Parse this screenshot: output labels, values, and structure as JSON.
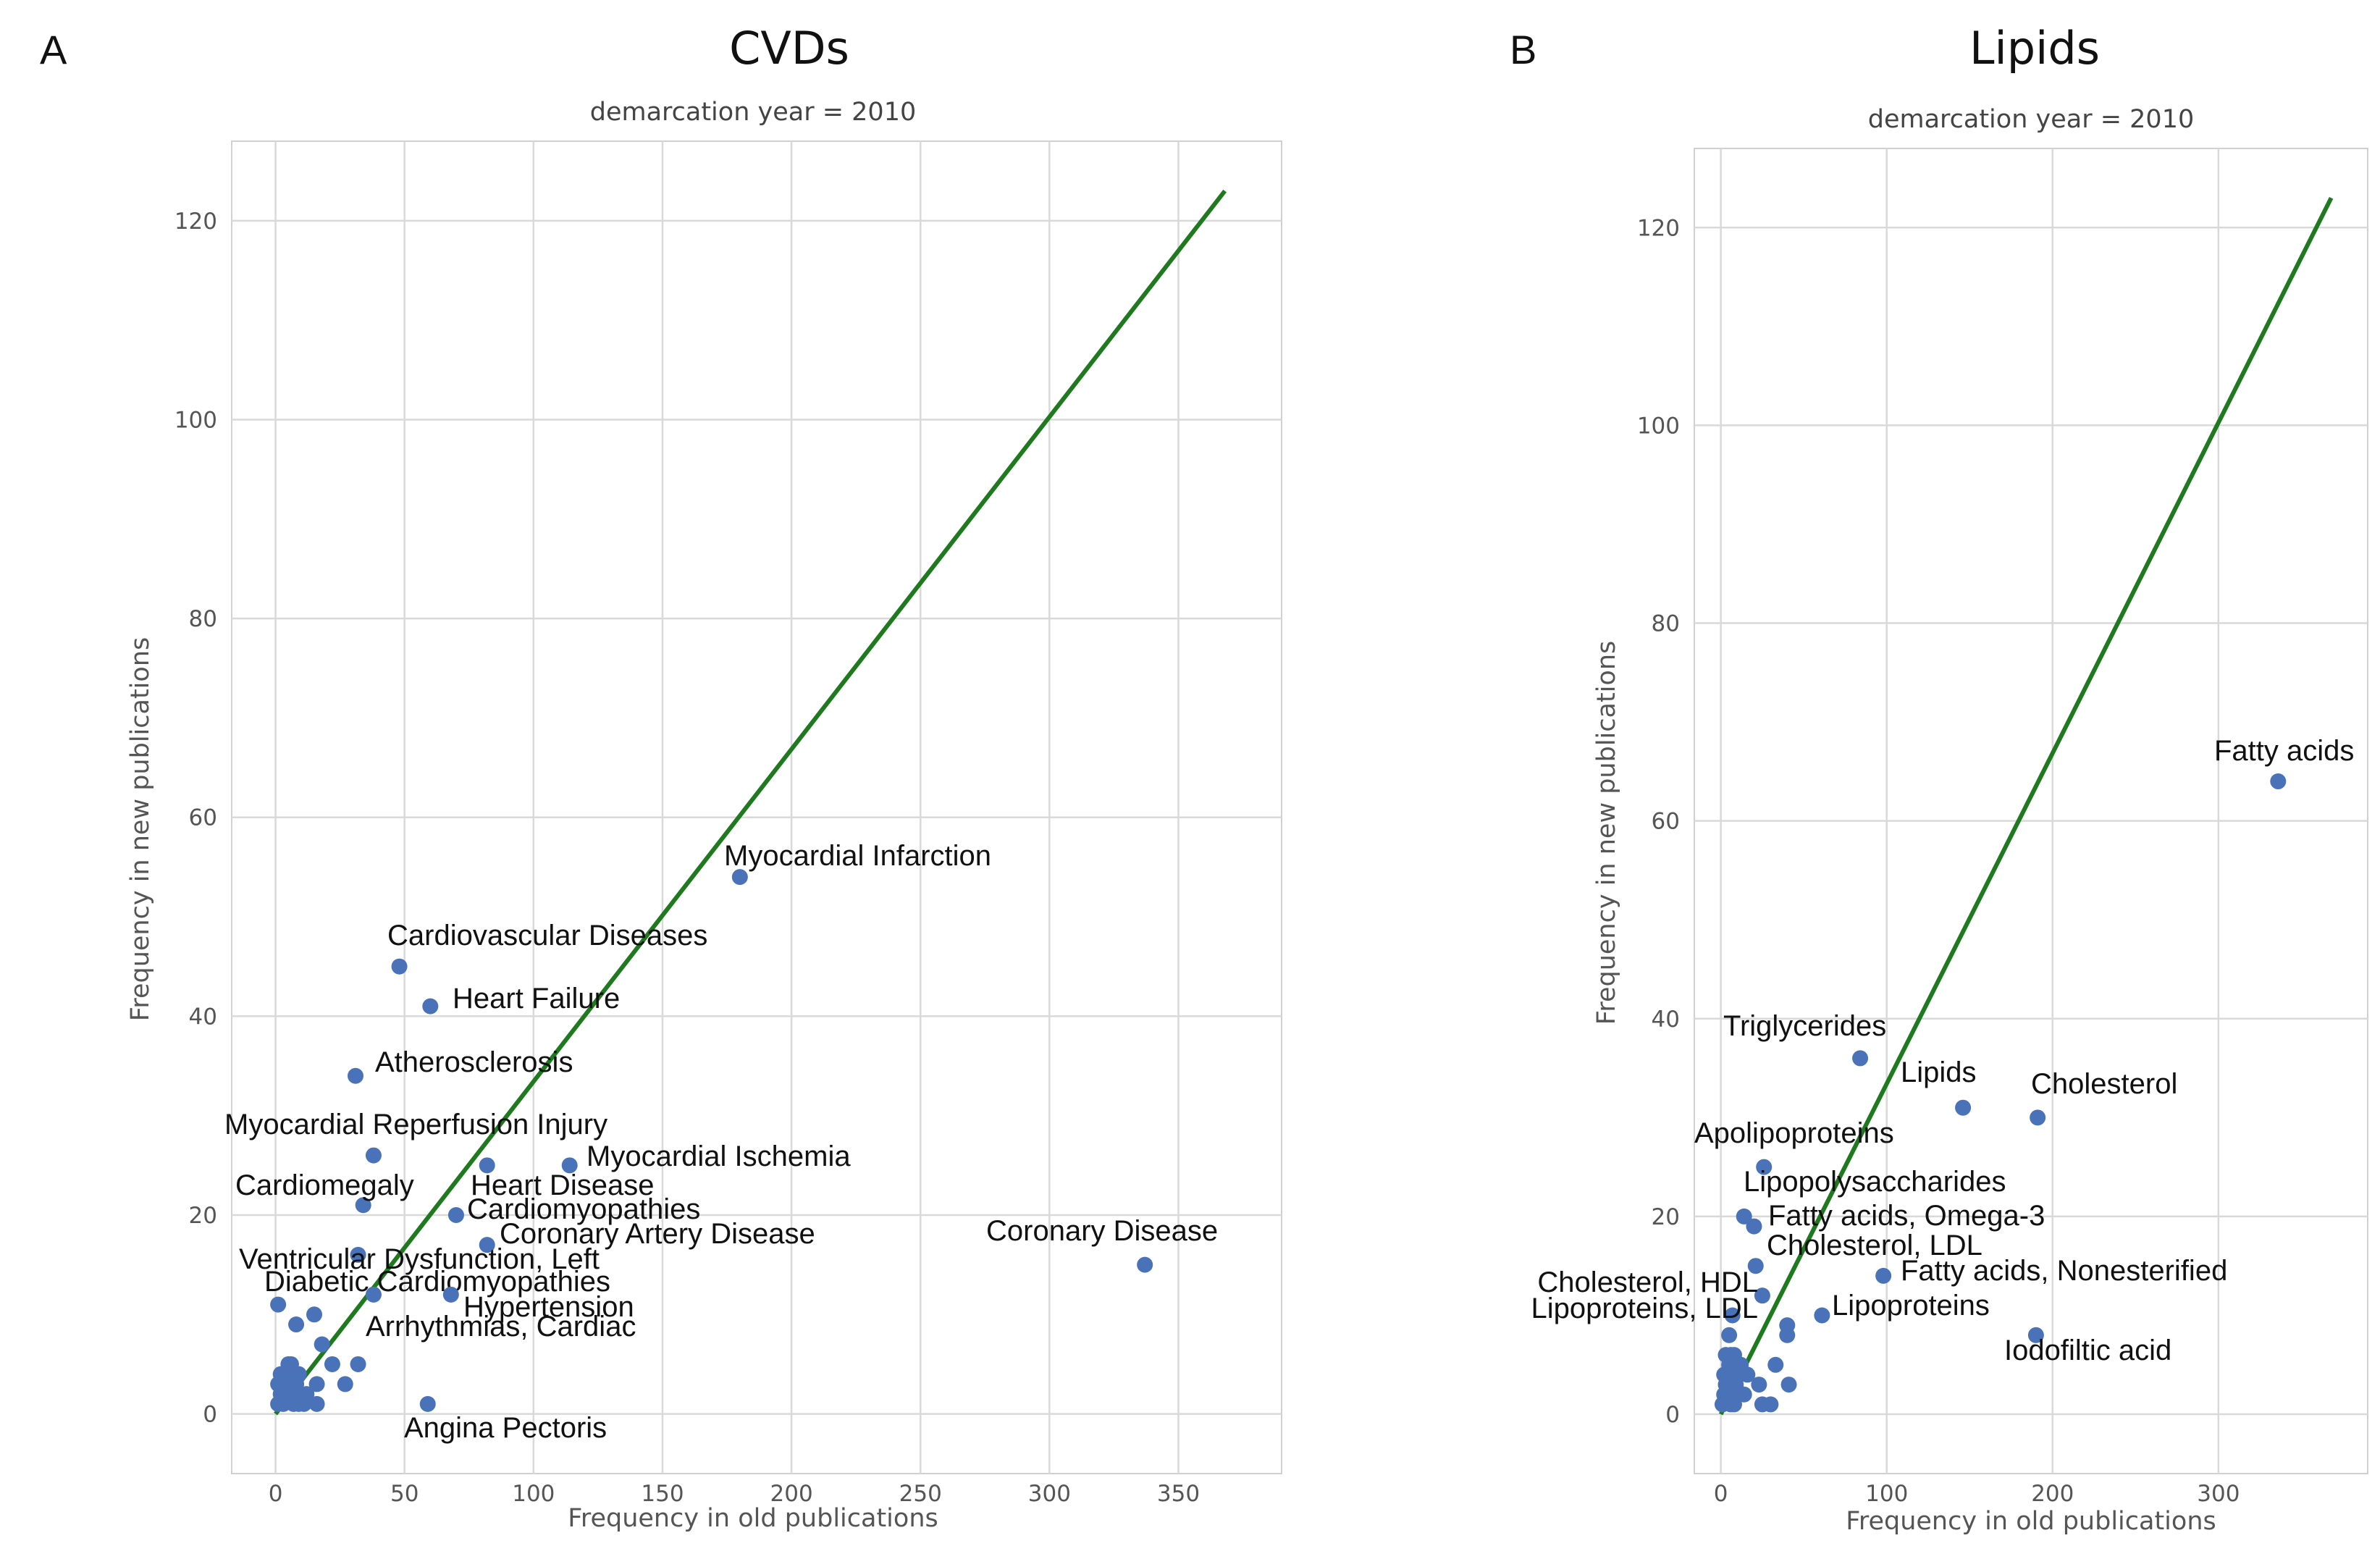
{
  "chart_data": [
    {
      "type": "scatter",
      "panel_letter": "A",
      "title": "CVDs",
      "subtitle": "demarcation year = 2010",
      "xlabel": "Frequency in old publications",
      "ylabel": "Frequency in new publications",
      "xlim": [
        -17,
        390
      ],
      "ylim": [
        -6,
        128
      ],
      "xticks": [
        0,
        50,
        100,
        150,
        200,
        250,
        300,
        350
      ],
      "yticks": [
        0,
        20,
        40,
        60,
        80,
        100,
        120
      ],
      "grid": true,
      "reference_line": {
        "x": [
          0,
          368
        ],
        "y": [
          0,
          123
        ]
      },
      "labeled_points": [
        {
          "label": "Myocardial Infarction",
          "x": 180,
          "y": 54
        },
        {
          "label": "Cardiovascular Diseases",
          "x": 48,
          "y": 45
        },
        {
          "label": "Heart Failure",
          "x": 60,
          "y": 41
        },
        {
          "label": "Atherosclerosis",
          "x": 31,
          "y": 34
        },
        {
          "label": "Myocardial Reperfusion Injury",
          "x": 38,
          "y": 26
        },
        {
          "label": "Myocardial Ischemia",
          "x": 114,
          "y": 25
        },
        {
          "label": "Cardiomegaly",
          "x": 34,
          "y": 21
        },
        {
          "label": "Heart Disease",
          "x": 82,
          "y": 25
        },
        {
          "label": "Cardiomyopathies",
          "x": 70,
          "y": 20
        },
        {
          "label": "Coronary Artery Disease",
          "x": 82,
          "y": 17
        },
        {
          "label": "Coronary Disease",
          "x": 337,
          "y": 15
        },
        {
          "label": "Ventricular Dysfunction, Left",
          "x": 32,
          "y": 16
        },
        {
          "label": "Diabetic Cardiomyopathies",
          "x": 38,
          "y": 12
        },
        {
          "label": "Hypertension",
          "x": 68,
          "y": 12
        },
        {
          "label": "Arrhythmias, Cardiac",
          "x": 32,
          "y": 5
        },
        {
          "label": "Angina Pectoris",
          "x": 59,
          "y": 1
        }
      ],
      "other_points": [
        {
          "x": 1,
          "y": 11
        },
        {
          "x": 8,
          "y": 9
        },
        {
          "x": 15,
          "y": 10
        },
        {
          "x": 18,
          "y": 7
        },
        {
          "x": 22,
          "y": 5
        },
        {
          "x": 27,
          "y": 3
        },
        {
          "x": 16,
          "y": 3
        },
        {
          "x": 16,
          "y": 1
        },
        {
          "x": 1,
          "y": 1
        },
        {
          "x": 2,
          "y": 2
        },
        {
          "x": 3,
          "y": 3
        },
        {
          "x": 4,
          "y": 4
        },
        {
          "x": 5,
          "y": 5
        },
        {
          "x": 6,
          "y": 2
        },
        {
          "x": 7,
          "y": 1
        },
        {
          "x": 8,
          "y": 3
        },
        {
          "x": 9,
          "y": 4
        },
        {
          "x": 10,
          "y": 2
        },
        {
          "x": 11,
          "y": 1
        },
        {
          "x": 3,
          "y": 1
        },
        {
          "x": 2,
          "y": 4
        },
        {
          "x": 6,
          "y": 5
        },
        {
          "x": 9,
          "y": 1
        },
        {
          "x": 12,
          "y": 2
        },
        {
          "x": 1,
          "y": 3
        },
        {
          "x": 5,
          "y": 2
        },
        {
          "x": 7,
          "y": 4
        }
      ]
    },
    {
      "type": "scatter",
      "panel_letter": "B",
      "title": "Lipids",
      "subtitle": "demarcation year = 2010",
      "xlabel": "Frequency in old publications",
      "ylabel": "Frequency in new publications",
      "xlim": [
        -16,
        390
      ],
      "ylim": [
        -6,
        128
      ],
      "xticks": [
        0,
        100,
        200,
        300
      ],
      "yticks": [
        0,
        20,
        40,
        60,
        80,
        100,
        120
      ],
      "grid": true,
      "reference_line": {
        "x": [
          0,
          368
        ],
        "y": [
          0,
          123
        ]
      },
      "labeled_points": [
        {
          "label": "Fatty acids",
          "x": 336,
          "y": 64
        },
        {
          "label": "Triglycerides",
          "x": 84,
          "y": 36
        },
        {
          "label": "Lipids",
          "x": 146,
          "y": 31
        },
        {
          "label": "Cholesterol",
          "x": 191,
          "y": 30
        },
        {
          "label": "Apolipoproteins",
          "x": 26,
          "y": 25
        },
        {
          "label": "Lipopolysaccharides",
          "x": 14,
          "y": 20
        },
        {
          "label": "Fatty acids, Omega-3",
          "x": 20,
          "y": 19
        },
        {
          "label": "Cholesterol, LDL",
          "x": 21,
          "y": 15
        },
        {
          "label": "Fatty acids, Nonesterified",
          "x": 98,
          "y": 14
        },
        {
          "label": "Cholesterol, HDL",
          "x": 25,
          "y": 12
        },
        {
          "label": "Lipoproteins, LDL",
          "x": 7,
          "y": 10
        },
        {
          "label": "Lipoproteins",
          "x": 61,
          "y": 10
        },
        {
          "label": "Iodofiltic acid",
          "x": 190,
          "y": 8
        }
      ],
      "other_points": [
        {
          "x": 40,
          "y": 9
        },
        {
          "x": 40,
          "y": 8
        },
        {
          "x": 33,
          "y": 5
        },
        {
          "x": 41,
          "y": 3
        },
        {
          "x": 23,
          "y": 3
        },
        {
          "x": 25,
          "y": 1
        },
        {
          "x": 30,
          "y": 1
        },
        {
          "x": 1,
          "y": 1
        },
        {
          "x": 2,
          "y": 2
        },
        {
          "x": 3,
          "y": 3
        },
        {
          "x": 4,
          "y": 4
        },
        {
          "x": 5,
          "y": 5
        },
        {
          "x": 6,
          "y": 6
        },
        {
          "x": 7,
          "y": 2
        },
        {
          "x": 8,
          "y": 1
        },
        {
          "x": 9,
          "y": 3
        },
        {
          "x": 10,
          "y": 4
        },
        {
          "x": 11,
          "y": 2
        },
        {
          "x": 12,
          "y": 5
        },
        {
          "x": 3,
          "y": 6
        },
        {
          "x": 5,
          "y": 8
        },
        {
          "x": 8,
          "y": 6
        },
        {
          "x": 14,
          "y": 2
        },
        {
          "x": 16,
          "y": 4
        },
        {
          "x": 2,
          "y": 4
        },
        {
          "x": 6,
          "y": 1
        }
      ]
    }
  ]
}
